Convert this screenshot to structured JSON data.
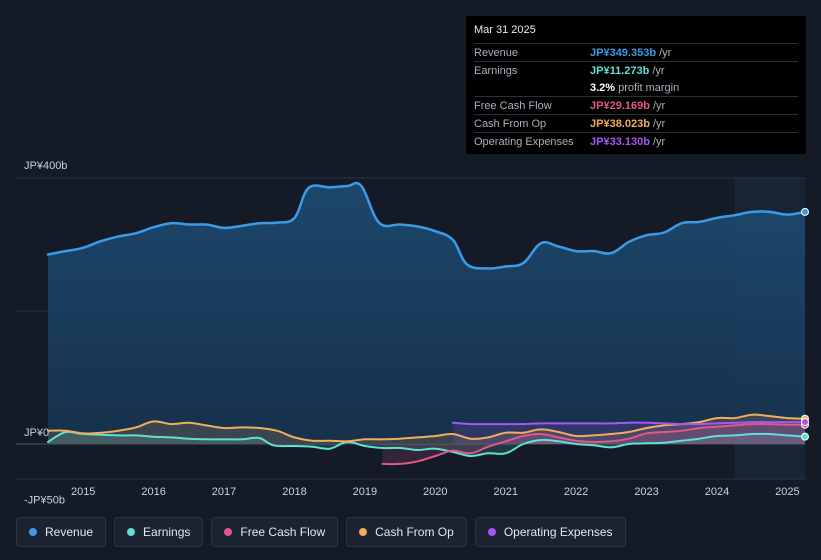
{
  "tooltip": {
    "date": "Mar 31 2025",
    "rows": [
      {
        "label": "Revenue",
        "value": "JP¥349.353b",
        "unit": "/yr",
        "color": "#3b9be6"
      },
      {
        "label": "Earnings",
        "value": "JP¥11.273b",
        "unit": "/yr",
        "color": "#5fe0d2"
      },
      {
        "label": "",
        "value": "3.2%",
        "unit": "profit margin",
        "color": "#ffffff"
      },
      {
        "label": "Free Cash Flow",
        "value": "JP¥29.169b",
        "unit": "/yr",
        "color": "#e0578b"
      },
      {
        "label": "Cash From Op",
        "value": "JP¥38.023b",
        "unit": "/yr",
        "color": "#f0ad5c"
      },
      {
        "label": "Operating Expenses",
        "value": "JP¥33.130b",
        "unit": "/yr",
        "color": "#a855f7"
      }
    ]
  },
  "legend": [
    {
      "label": "Revenue",
      "color": "#3b9be6"
    },
    {
      "label": "Earnings",
      "color": "#5fe0d2"
    },
    {
      "label": "Free Cash Flow",
      "color": "#e0578b"
    },
    {
      "label": "Cash From Op",
      "color": "#f0ad5c"
    },
    {
      "label": "Operating Expenses",
      "color": "#a855f7"
    }
  ],
  "chart_data": {
    "type": "area",
    "title": "",
    "xlabel": "",
    "ylabel": "",
    "units": "JP¥ billions",
    "ylim": [
      -50,
      400
    ],
    "y_tick_labels": [
      {
        "value": 400,
        "label": "JP¥400b"
      },
      {
        "value": 0,
        "label": "JP¥0"
      },
      {
        "value": -50,
        "label": "-JP¥50b"
      }
    ],
    "xlim": [
      2014.5,
      2025.25
    ],
    "x_ticks": [
      "2015",
      "2016",
      "2017",
      "2018",
      "2019",
      "2020",
      "2021",
      "2022",
      "2023",
      "2024",
      "2025"
    ],
    "highlight_start": 2024.25,
    "series": [
      {
        "name": "Revenue",
        "color": "#3b9be6",
        "points": [
          [
            2014.5,
            285
          ],
          [
            2014.75,
            290
          ],
          [
            2015.0,
            295
          ],
          [
            2015.25,
            305
          ],
          [
            2015.5,
            312
          ],
          [
            2015.75,
            317
          ],
          [
            2016.0,
            326
          ],
          [
            2016.25,
            332
          ],
          [
            2016.5,
            330
          ],
          [
            2016.75,
            330
          ],
          [
            2017.0,
            325
          ],
          [
            2017.25,
            328
          ],
          [
            2017.5,
            332
          ],
          [
            2017.75,
            333
          ],
          [
            2018.0,
            340
          ],
          [
            2018.2,
            385
          ],
          [
            2018.5,
            386
          ],
          [
            2018.75,
            388
          ],
          [
            2018.95,
            388
          ],
          [
            2019.2,
            333
          ],
          [
            2019.5,
            330
          ],
          [
            2019.75,
            327
          ],
          [
            2020.0,
            320
          ],
          [
            2020.25,
            307
          ],
          [
            2020.45,
            270
          ],
          [
            2020.75,
            264
          ],
          [
            2021.0,
            267
          ],
          [
            2021.25,
            272
          ],
          [
            2021.5,
            302
          ],
          [
            2021.75,
            297
          ],
          [
            2022.0,
            290
          ],
          [
            2022.25,
            290
          ],
          [
            2022.5,
            287
          ],
          [
            2022.75,
            304
          ],
          [
            2023.0,
            314
          ],
          [
            2023.25,
            318
          ],
          [
            2023.5,
            332
          ],
          [
            2023.75,
            334
          ],
          [
            2024.0,
            340
          ],
          [
            2024.25,
            344
          ],
          [
            2024.5,
            349
          ],
          [
            2024.75,
            349
          ],
          [
            2025.0,
            345
          ],
          [
            2025.25,
            349
          ]
        ]
      },
      {
        "name": "Earnings",
        "color": "#5fe0d2",
        "points": [
          [
            2014.5,
            3
          ],
          [
            2014.75,
            18
          ],
          [
            2015.0,
            15
          ],
          [
            2015.5,
            13
          ],
          [
            2015.75,
            13
          ],
          [
            2016.0,
            11
          ],
          [
            2016.25,
            10
          ],
          [
            2016.5,
            8
          ],
          [
            2016.75,
            7
          ],
          [
            2017.0,
            7
          ],
          [
            2017.25,
            7
          ],
          [
            2017.5,
            9
          ],
          [
            2017.7,
            -2
          ],
          [
            2018.0,
            -3
          ],
          [
            2018.25,
            -4
          ],
          [
            2018.5,
            -7
          ],
          [
            2018.75,
            3
          ],
          [
            2019.0,
            -3
          ],
          [
            2019.25,
            -6
          ],
          [
            2019.5,
            -6
          ],
          [
            2019.75,
            -9
          ],
          [
            2020.0,
            -7
          ],
          [
            2020.25,
            -12
          ],
          [
            2020.5,
            -18
          ],
          [
            2020.75,
            -14
          ],
          [
            2021.0,
            -14
          ],
          [
            2021.25,
            0
          ],
          [
            2021.5,
            6
          ],
          [
            2021.75,
            4
          ],
          [
            2022.0,
            0
          ],
          [
            2022.25,
            -2
          ],
          [
            2022.5,
            -5
          ],
          [
            2022.75,
            0
          ],
          [
            2023.0,
            1
          ],
          [
            2023.25,
            2
          ],
          [
            2023.5,
            5
          ],
          [
            2023.75,
            8
          ],
          [
            2024.0,
            12
          ],
          [
            2024.25,
            13
          ],
          [
            2024.5,
            15
          ],
          [
            2024.75,
            15
          ],
          [
            2025.0,
            13
          ],
          [
            2025.25,
            11
          ]
        ]
      },
      {
        "name": "Free Cash Flow",
        "color": "#e0578b",
        "points": [
          [
            2019.25,
            -30
          ],
          [
            2019.5,
            -30
          ],
          [
            2019.75,
            -26
          ],
          [
            2020.0,
            -18
          ],
          [
            2020.25,
            -10
          ],
          [
            2020.5,
            -14
          ],
          [
            2020.75,
            -4
          ],
          [
            2021.0,
            4
          ],
          [
            2021.25,
            12
          ],
          [
            2021.5,
            15
          ],
          [
            2021.75,
            10
          ],
          [
            2022.0,
            5
          ],
          [
            2022.25,
            3
          ],
          [
            2022.5,
            4
          ],
          [
            2022.75,
            8
          ],
          [
            2023.0,
            16
          ],
          [
            2023.25,
            18
          ],
          [
            2023.5,
            20
          ],
          [
            2023.75,
            24
          ],
          [
            2024.0,
            26
          ],
          [
            2024.25,
            28
          ],
          [
            2024.5,
            30
          ],
          [
            2024.75,
            30
          ],
          [
            2025.0,
            29
          ],
          [
            2025.25,
            29
          ]
        ]
      },
      {
        "name": "Cash From Op",
        "color": "#f0ad5c",
        "points": [
          [
            2014.5,
            20
          ],
          [
            2014.75,
            20
          ],
          [
            2015.0,
            16
          ],
          [
            2015.25,
            17
          ],
          [
            2015.5,
            20
          ],
          [
            2015.75,
            25
          ],
          [
            2016.0,
            34
          ],
          [
            2016.25,
            30
          ],
          [
            2016.5,
            32
          ],
          [
            2016.75,
            28
          ],
          [
            2017.0,
            24
          ],
          [
            2017.25,
            25
          ],
          [
            2017.5,
            24
          ],
          [
            2017.75,
            20
          ],
          [
            2018.0,
            10
          ],
          [
            2018.25,
            5
          ],
          [
            2018.5,
            5
          ],
          [
            2018.75,
            4
          ],
          [
            2019.0,
            7
          ],
          [
            2019.25,
            7
          ],
          [
            2019.5,
            8
          ],
          [
            2019.75,
            10
          ],
          [
            2020.0,
            12
          ],
          [
            2020.25,
            15
          ],
          [
            2020.5,
            8
          ],
          [
            2020.75,
            10
          ],
          [
            2021.0,
            17
          ],
          [
            2021.25,
            17
          ],
          [
            2021.5,
            22
          ],
          [
            2021.75,
            18
          ],
          [
            2022.0,
            12
          ],
          [
            2022.25,
            13
          ],
          [
            2022.5,
            15
          ],
          [
            2022.75,
            18
          ],
          [
            2023.0,
            24
          ],
          [
            2023.25,
            28
          ],
          [
            2023.5,
            30
          ],
          [
            2023.75,
            33
          ],
          [
            2024.0,
            39
          ],
          [
            2024.25,
            39
          ],
          [
            2024.5,
            44
          ],
          [
            2024.75,
            42
          ],
          [
            2025.0,
            39
          ],
          [
            2025.25,
            38
          ]
        ]
      },
      {
        "name": "Operating Expenses",
        "color": "#a855f7",
        "points": [
          [
            2020.25,
            32
          ],
          [
            2020.5,
            30
          ],
          [
            2020.75,
            30
          ],
          [
            2021.0,
            30
          ],
          [
            2021.25,
            30
          ],
          [
            2021.5,
            31
          ],
          [
            2021.75,
            31
          ],
          [
            2022.0,
            31
          ],
          [
            2022.25,
            31
          ],
          [
            2022.5,
            31
          ],
          [
            2022.75,
            32
          ],
          [
            2023.0,
            32
          ],
          [
            2023.25,
            31
          ],
          [
            2023.5,
            30
          ],
          [
            2023.75,
            30
          ],
          [
            2024.0,
            31
          ],
          [
            2024.25,
            32
          ],
          [
            2024.5,
            33
          ],
          [
            2024.75,
            33
          ],
          [
            2025.0,
            33
          ],
          [
            2025.25,
            33
          ]
        ]
      }
    ]
  }
}
